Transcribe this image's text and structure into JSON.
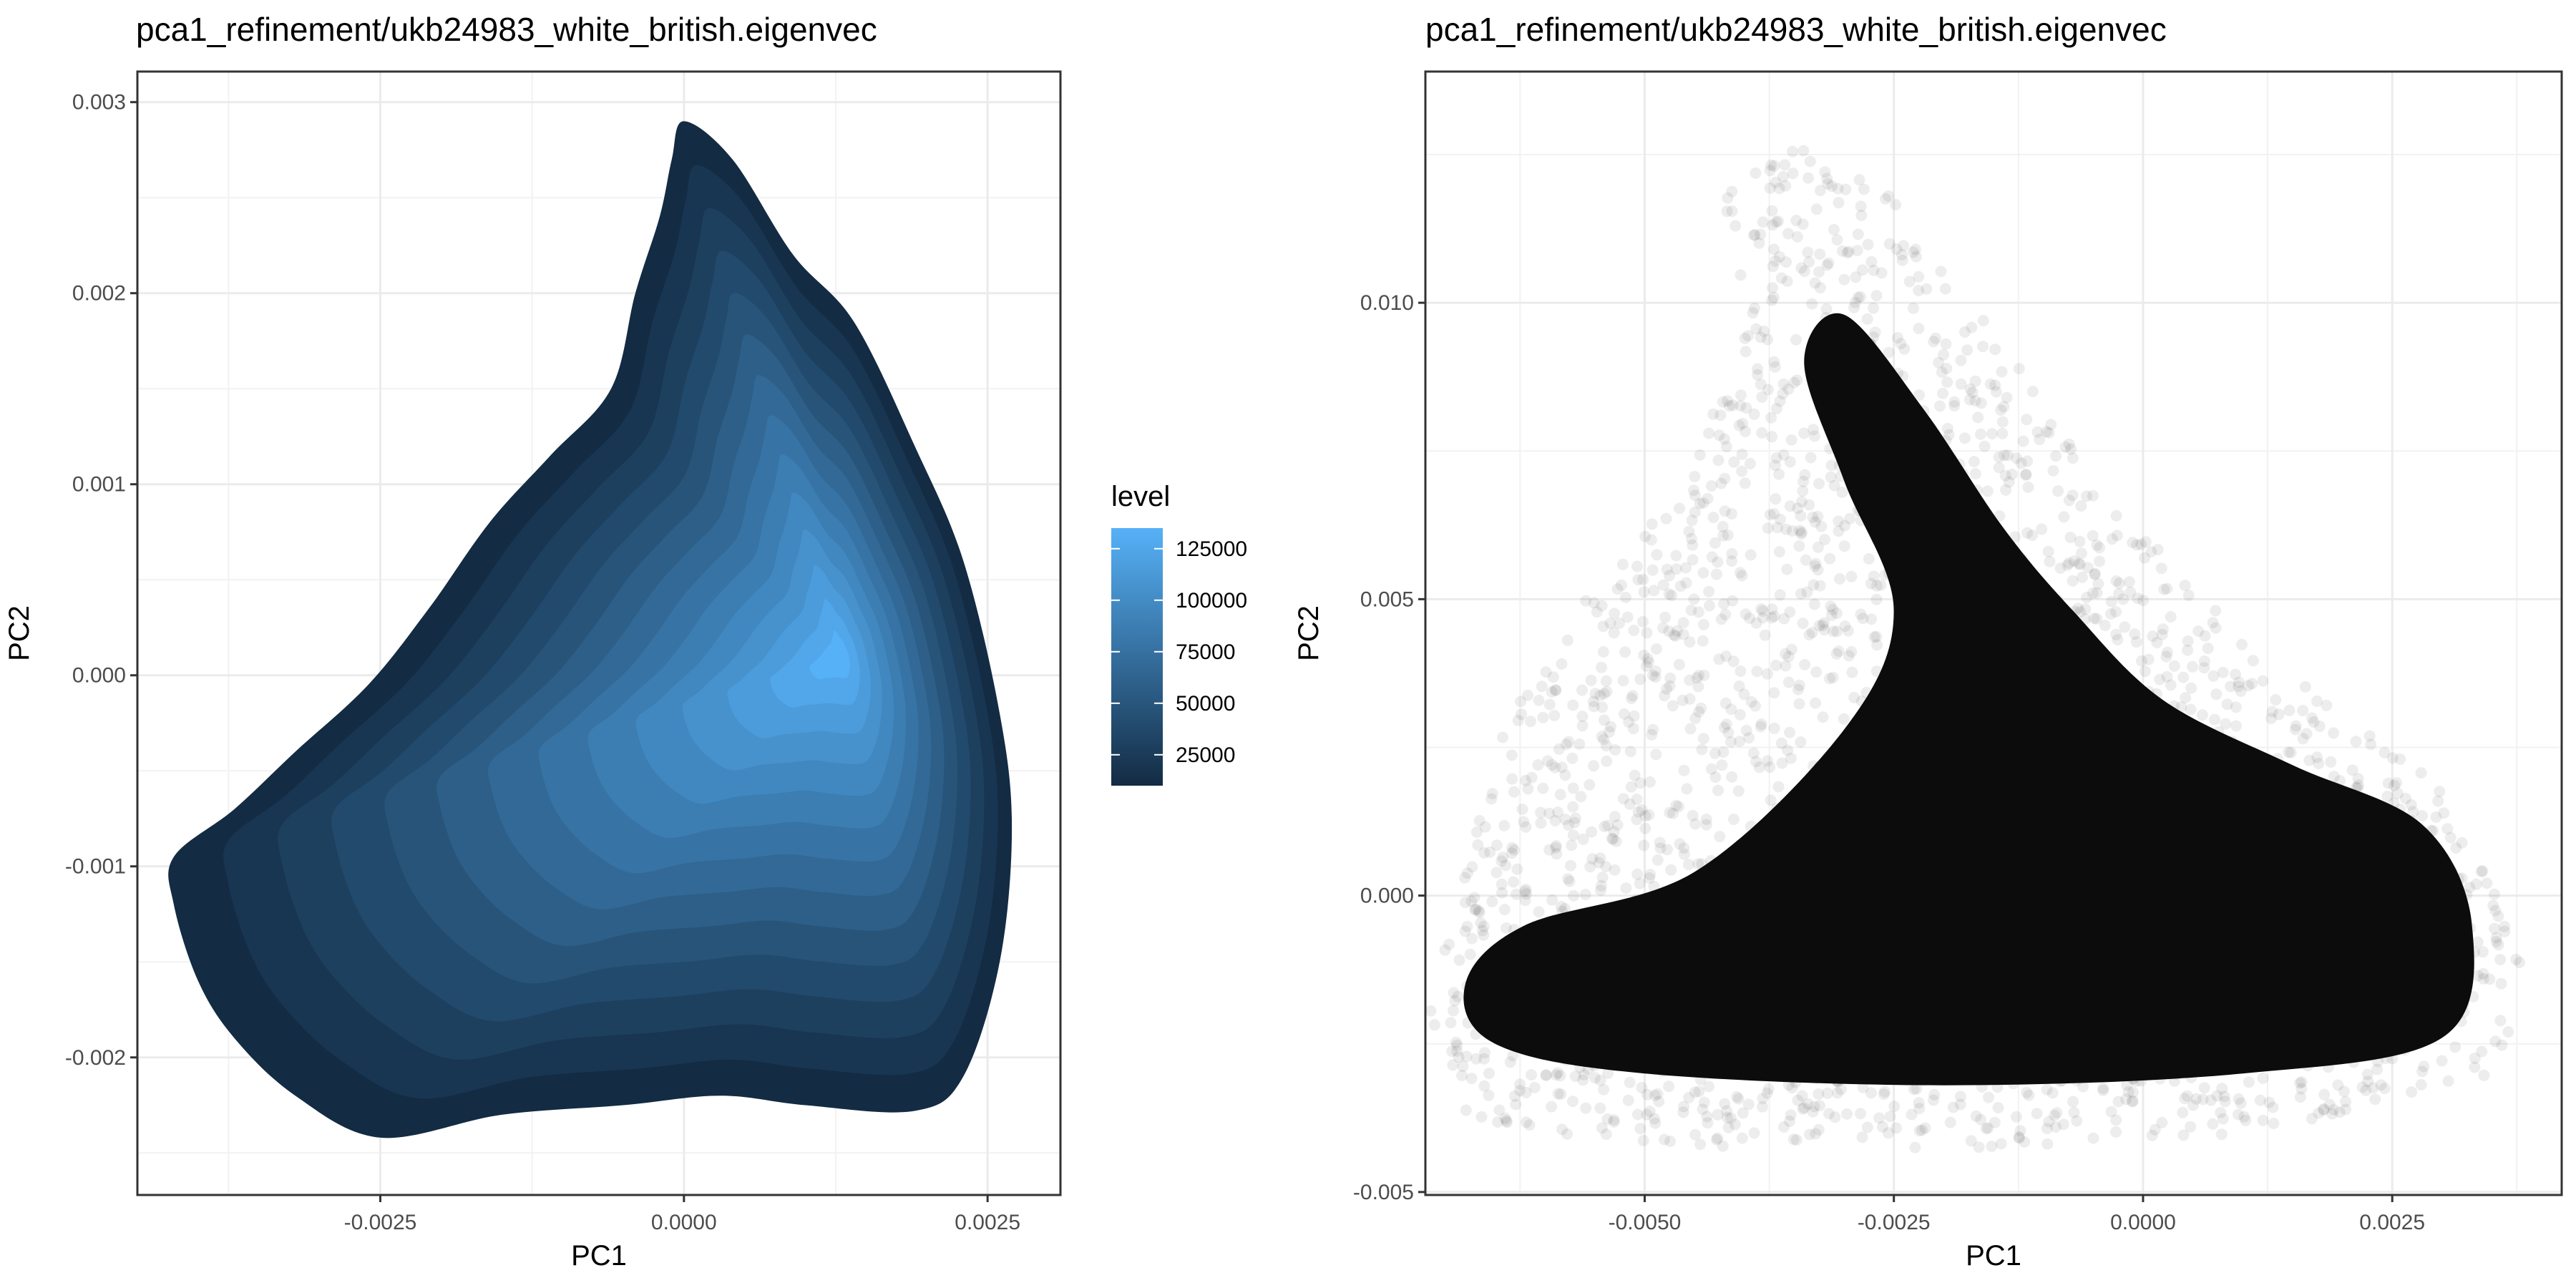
{
  "chart_data": [
    {
      "type": "contour",
      "title": "pca1_refinement/ukb24983_white_british.eigenvec",
      "xlabel": "PC1",
      "ylabel": "PC2",
      "xlim": [
        -0.0045,
        0.0031
      ],
      "ylim": [
        -0.00272,
        0.00316
      ],
      "x_ticks": [
        {
          "value": -0.0025,
          "label": "-0.0025"
        },
        {
          "value": 0.0,
          "label": "0.0000"
        },
        {
          "value": 0.0025,
          "label": "0.0025"
        }
      ],
      "y_ticks": [
        {
          "value": -0.002,
          "label": "-0.002"
        },
        {
          "value": -0.001,
          "label": "-0.001"
        },
        {
          "value": 0.0,
          "label": "0.000"
        },
        {
          "value": 0.001,
          "label": "0.001"
        },
        {
          "value": 0.002,
          "label": "0.002"
        },
        {
          "value": 0.003,
          "label": "0.003"
        }
      ],
      "grid": true,
      "density_peak": {
        "x": 0.0013,
        "y": 0.0001
      },
      "outer_contour": [
        [
          0.0,
          0.0029
        ],
        [
          0.0004,
          0.0027
        ],
        [
          0.0009,
          0.0022
        ],
        [
          0.0014,
          0.00185
        ],
        [
          0.0019,
          0.0012
        ],
        [
          0.0023,
          0.0006
        ],
        [
          0.0026,
          -0.0002
        ],
        [
          0.0027,
          -0.0008
        ],
        [
          0.0026,
          -0.0015
        ],
        [
          0.0023,
          -0.0021
        ],
        [
          0.0019,
          -0.00228
        ],
        [
          0.001,
          -0.00225
        ],
        [
          0.0003,
          -0.0022
        ],
        [
          -0.0005,
          -0.00225
        ],
        [
          -0.0015,
          -0.0023
        ],
        [
          -0.0025,
          -0.00242
        ],
        [
          -0.0032,
          -0.0022
        ],
        [
          -0.0037,
          -0.0019
        ],
        [
          -0.004,
          -0.0016
        ],
        [
          -0.0042,
          -0.0012
        ],
        [
          -0.0042,
          -0.00095
        ],
        [
          -0.0037,
          -0.0007
        ],
        [
          -0.0032,
          -0.0004
        ],
        [
          -0.0026,
          -5e-05
        ],
        [
          -0.0021,
          0.00035
        ],
        [
          -0.0016,
          0.0008
        ],
        [
          -0.0011,
          0.00115
        ],
        [
          -0.0006,
          0.0015
        ],
        [
          -0.0004,
          0.002
        ],
        [
          -0.0002,
          0.0024
        ],
        [
          -0.0001,
          0.0027
        ]
      ],
      "colorbar": {
        "title": "level",
        "range": [
          10000,
          135000
        ],
        "ticks": [
          25000,
          50000,
          75000,
          100000,
          125000
        ],
        "tick_labels": [
          "25000",
          "50000",
          "75000",
          "100000",
          "125000"
        ],
        "low_color": "#132B43",
        "high_color": "#56B1F7"
      }
    },
    {
      "type": "scatter",
      "title": "pca1_refinement/ukb24983_white_british.eigenvec",
      "xlabel": "PC1",
      "ylabel": "PC2",
      "xlim": [
        -0.0072,
        0.0042
      ],
      "ylim": [
        -0.00505,
        0.0139
      ],
      "x_ticks": [
        {
          "value": -0.005,
          "label": "-0.0050"
        },
        {
          "value": -0.0025,
          "label": "-0.0025"
        },
        {
          "value": 0.0,
          "label": "0.0000"
        },
        {
          "value": 0.0025,
          "label": "0.0025"
        }
      ],
      "y_ticks": [
        {
          "value": -0.005,
          "label": "-0.005"
        },
        {
          "value": 0.0,
          "label": "0.000"
        },
        {
          "value": 0.005,
          "label": "0.005"
        },
        {
          "value": 0.01,
          "label": "0.010"
        }
      ],
      "grid": true,
      "point_alpha": 0.07,
      "dense_region": [
        [
          -0.0068,
          -0.0015
        ],
        [
          -0.0065,
          -0.0025
        ],
        [
          -0.005,
          -0.003
        ],
        [
          -0.002,
          -0.0032
        ],
        [
          0.001,
          -0.003
        ],
        [
          0.003,
          -0.0024
        ],
        [
          0.0033,
          -0.0005
        ],
        [
          0.0028,
          0.0012
        ],
        [
          0.0015,
          0.0022
        ],
        [
          0.0002,
          0.0033
        ],
        [
          -0.0007,
          0.0048
        ],
        [
          -0.0014,
          0.0062
        ],
        [
          -0.0022,
          0.0082
        ],
        [
          -0.003,
          0.0098
        ],
        [
          -0.0034,
          0.009
        ],
        [
          -0.003,
          0.007
        ],
        [
          -0.0025,
          0.0048
        ],
        [
          -0.003,
          0.0028
        ],
        [
          -0.0045,
          0.0004
        ],
        [
          -0.0062,
          -0.0005
        ]
      ],
      "scatter_region": [
        [
          -0.0072,
          -0.002
        ],
        [
          -0.0068,
          -0.0038
        ],
        [
          -0.005,
          -0.0042
        ],
        [
          -0.002,
          -0.0043
        ],
        [
          0.0012,
          -0.004
        ],
        [
          0.0036,
          -0.003
        ],
        [
          0.0038,
          -0.001
        ],
        [
          0.003,
          0.002
        ],
        [
          0.0012,
          0.004
        ],
        [
          -0.0004,
          0.0068
        ],
        [
          -0.0016,
          0.0098
        ],
        [
          -0.0025,
          0.0118
        ],
        [
          -0.0035,
          0.0127
        ],
        [
          -0.0042,
          0.0118
        ],
        [
          -0.004,
          0.0095
        ],
        [
          -0.0046,
          0.007
        ],
        [
          -0.0056,
          0.005
        ],
        [
          -0.0064,
          0.003
        ],
        [
          -0.0068,
          0.0005
        ]
      ]
    }
  ]
}
